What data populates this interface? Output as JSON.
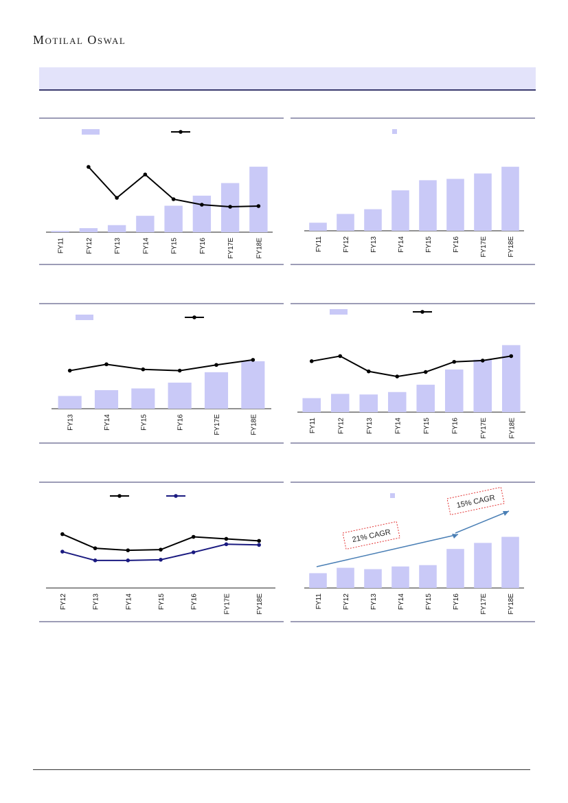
{
  "header": {
    "brand": "Motilal Oswal"
  },
  "colors": {
    "bar": "#c9c9f7",
    "line": "#000000",
    "line2": "#1a1a80",
    "rule": "#3a3a6e",
    "annotation_box": "#e23030",
    "arrow": "#4a7fb5"
  },
  "chart_data": [
    {
      "id": "c1",
      "type": "bar",
      "categories": [
        "FY11",
        "FY12",
        "FY13",
        "FY14",
        "FY15",
        "FY16",
        "FY17E",
        "FY18E"
      ],
      "series": [
        {
          "kind": "bar",
          "values": [
            0.5,
            1.6,
            2.8,
            6.5,
            10.5,
            14.5,
            19.5,
            26.0
          ]
        },
        {
          "kind": "line",
          "axis": "right",
          "values": [
            null,
            95,
            50,
            84,
            48,
            40,
            37,
            38
          ]
        }
      ],
      "ylim": [
        0,
        30
      ],
      "y2lim": [
        0,
        110
      ],
      "legend": "top"
    },
    {
      "id": "c2",
      "type": "bar",
      "categories": [
        "FY11",
        "FY12",
        "FY13",
        "FY14",
        "FY15",
        "FY16",
        "FY17E",
        "FY18E"
      ],
      "series": [
        {
          "kind": "bar",
          "values": [
            12,
            25,
            32,
            60,
            75,
            77,
            85,
            95
          ]
        }
      ],
      "ylim": [
        0,
        110
      ],
      "legend": "top"
    },
    {
      "id": "c3",
      "type": "bar",
      "categories": [
        "FY13",
        "FY14",
        "FY15",
        "FY16",
        "FY17E",
        "FY18E"
      ],
      "series": [
        {
          "kind": "bar",
          "values": [
            22,
            32,
            35,
            45,
            63,
            82
          ]
        },
        {
          "kind": "line",
          "axis": "right",
          "values": [
            60,
            70,
            62,
            60,
            69,
            77
          ]
        }
      ],
      "ylim": [
        0,
        115
      ],
      "y2lim": [
        0,
        105
      ],
      "legend": "top"
    },
    {
      "id": "c4",
      "type": "bar",
      "categories": [
        "FY11",
        "FY12",
        "FY13",
        "FY14",
        "FY15",
        "FY16",
        "FY17E",
        "FY18E"
      ],
      "series": [
        {
          "kind": "bar",
          "values": [
            23,
            30,
            29,
            33,
            45,
            70,
            86,
            110
          ]
        },
        {
          "kind": "line",
          "axis": "right",
          "values": [
            80,
            88,
            64,
            56,
            63,
            79,
            81,
            88
          ]
        }
      ],
      "ylim": [
        0,
        115
      ],
      "y2lim": [
        0,
        110
      ],
      "legend": "top"
    },
    {
      "id": "c5",
      "type": "line",
      "categories": [
        "FY12",
        "FY13",
        "FY14",
        "FY15",
        "FY16",
        "FY17E",
        "FY18E"
      ],
      "series": [
        {
          "kind": "line",
          "values": [
            80,
            59,
            56,
            57,
            76,
            73,
            70
          ]
        },
        {
          "kind": "line",
          "values": [
            54,
            41,
            41,
            42,
            53,
            65,
            64
          ]
        }
      ],
      "ylim": [
        0,
        100
      ],
      "legend": "top"
    },
    {
      "id": "c6",
      "type": "bar",
      "categories": [
        "FY11",
        "FY12",
        "FY13",
        "FY14",
        "FY15",
        "FY16",
        "FY17E",
        "FY18E"
      ],
      "series": [
        {
          "kind": "bar",
          "values": [
            22,
            30,
            28,
            32,
            34,
            58,
            67,
            76
          ]
        }
      ],
      "ylim": [
        0,
        100
      ],
      "legend": "top",
      "annotations": [
        "21% CAGR",
        "15% CAGR"
      ]
    }
  ]
}
